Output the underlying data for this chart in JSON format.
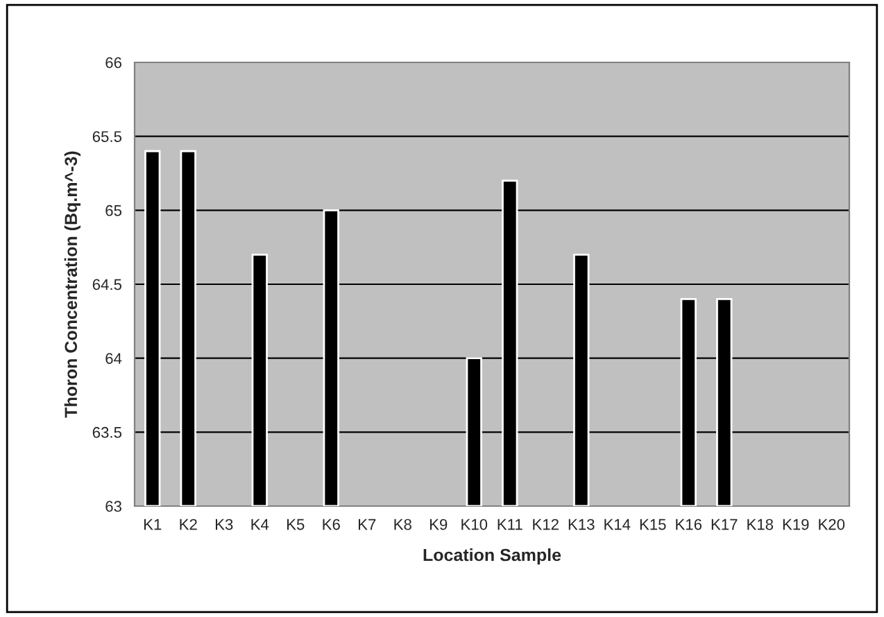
{
  "chart_data": {
    "type": "bar",
    "xlabel": "Location Sample",
    "ylabel": "Thoron Concentration (Bq.m^-3)",
    "categories": [
      "K1",
      "K2",
      "K3",
      "K4",
      "K5",
      "K6",
      "K7",
      "K8",
      "K9",
      "K10",
      "K11",
      "K12",
      "K13",
      "K14",
      "K15",
      "K16",
      "K17",
      "K18",
      "K19",
      "K20"
    ],
    "values": [
      65.4,
      65.4,
      null,
      64.7,
      null,
      65.0,
      null,
      null,
      null,
      64.0,
      65.2,
      null,
      64.7,
      null,
      null,
      64.4,
      64.4,
      null,
      null,
      null
    ],
    "color": "#000000",
    "ylim": [
      63,
      66
    ],
    "yticks": [
      63,
      63.5,
      64,
      64.5,
      65,
      65.5,
      66
    ],
    "grid": "y",
    "legend": false
  }
}
